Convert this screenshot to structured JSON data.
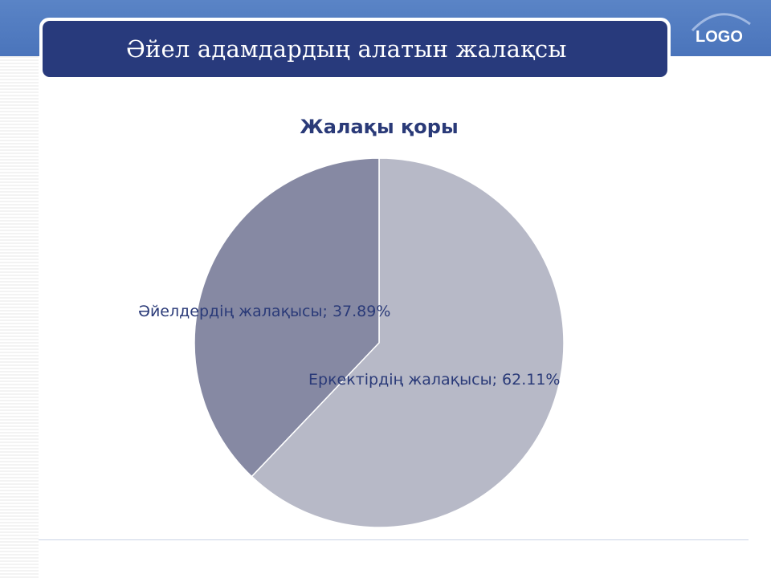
{
  "slide": {
    "title": "Әйел адамдардың алатын жалақсы",
    "logo_text": "LOGO"
  },
  "colors": {
    "header_band": "#4f7ac1",
    "title_bar": "#283a7c",
    "label_text": "#2a3a78"
  },
  "chart_data": {
    "type": "pie",
    "title": "Жалақы қоры",
    "series": [
      {
        "name": "Еркектірдің жалақысы",
        "value": 62.11,
        "label": "Еркектірдің жалақысы; 62.11%",
        "color": "#b7b9c7"
      },
      {
        "name": "Әйелдердің жалақысы",
        "value": 37.89,
        "label": "Әйелдердің жалақысы; 37.89%",
        "color": "#8689a3"
      }
    ],
    "legend": "none"
  }
}
